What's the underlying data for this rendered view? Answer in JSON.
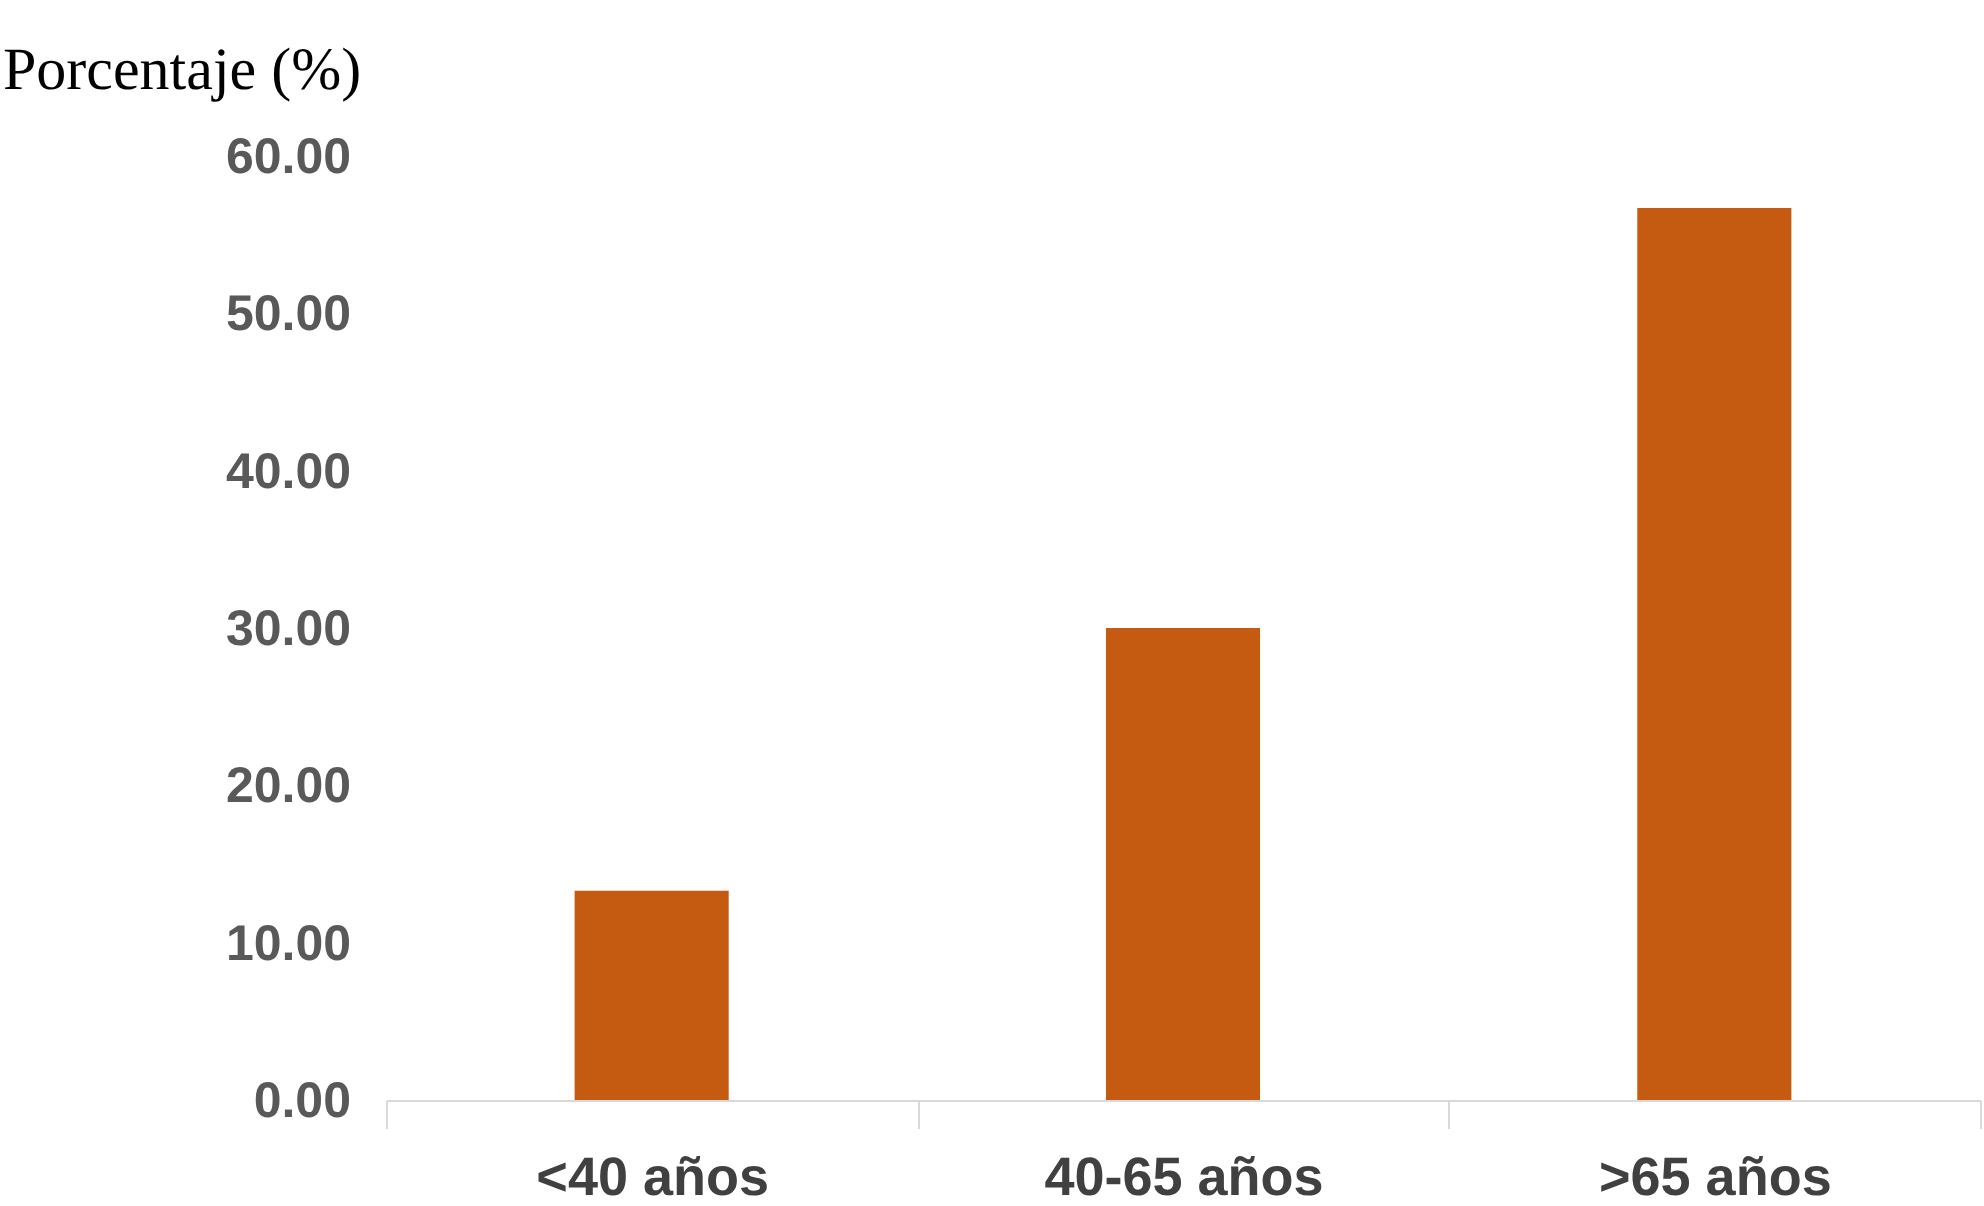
{
  "chart_data": {
    "type": "bar",
    "ylabel": "Porcentaje (%)",
    "categories": [
      "<40 años",
      "40-65 años",
      ">65 años"
    ],
    "values": [
      13.3,
      30.0,
      56.7
    ],
    "color": "#c55a11",
    "ylim": [
      0,
      60
    ],
    "yticks": [
      {
        "value": 0,
        "label": "0.00"
      },
      {
        "value": 10,
        "label": "10.00"
      },
      {
        "value": 20,
        "label": "20.00"
      },
      {
        "value": 30,
        "label": "30.00"
      },
      {
        "value": 40,
        "label": "40.00"
      },
      {
        "value": 50,
        "label": "50.00"
      },
      {
        "value": 60,
        "label": "60.00"
      }
    ],
    "grid": false
  }
}
